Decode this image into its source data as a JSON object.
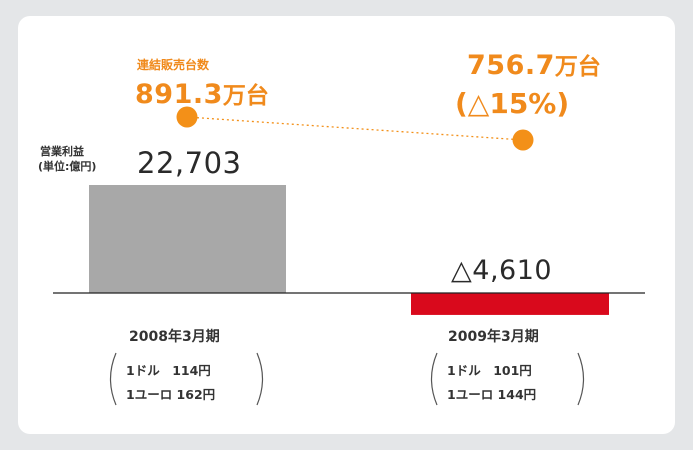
{
  "chart_data": {
    "type": "bar",
    "categories": [
      "2008年3月期",
      "2009年3月期"
    ],
    "bar_series": {
      "label_lines": [
        "営業利益",
        "(単位:億円)"
      ],
      "values": [
        22703,
        -4610
      ],
      "value_labels": [
        "22,703",
        "△4,610"
      ],
      "colors": [
        "#a8a8a8",
        "#d9091c"
      ]
    },
    "line_series": {
      "label": "連結販売台数",
      "values": [
        891.3,
        756.7
      ],
      "value_numbers": [
        "891.3",
        "756.7"
      ],
      "unit": "万台",
      "change_label": "(△15%)",
      "color": "#f39018"
    },
    "exchange_rates": [
      {
        "usd": "1ドル　114円",
        "eur": "1ユーロ 162円"
      },
      {
        "usd": "1ドル　101円",
        "eur": "1ユーロ 144円"
      }
    ]
  }
}
